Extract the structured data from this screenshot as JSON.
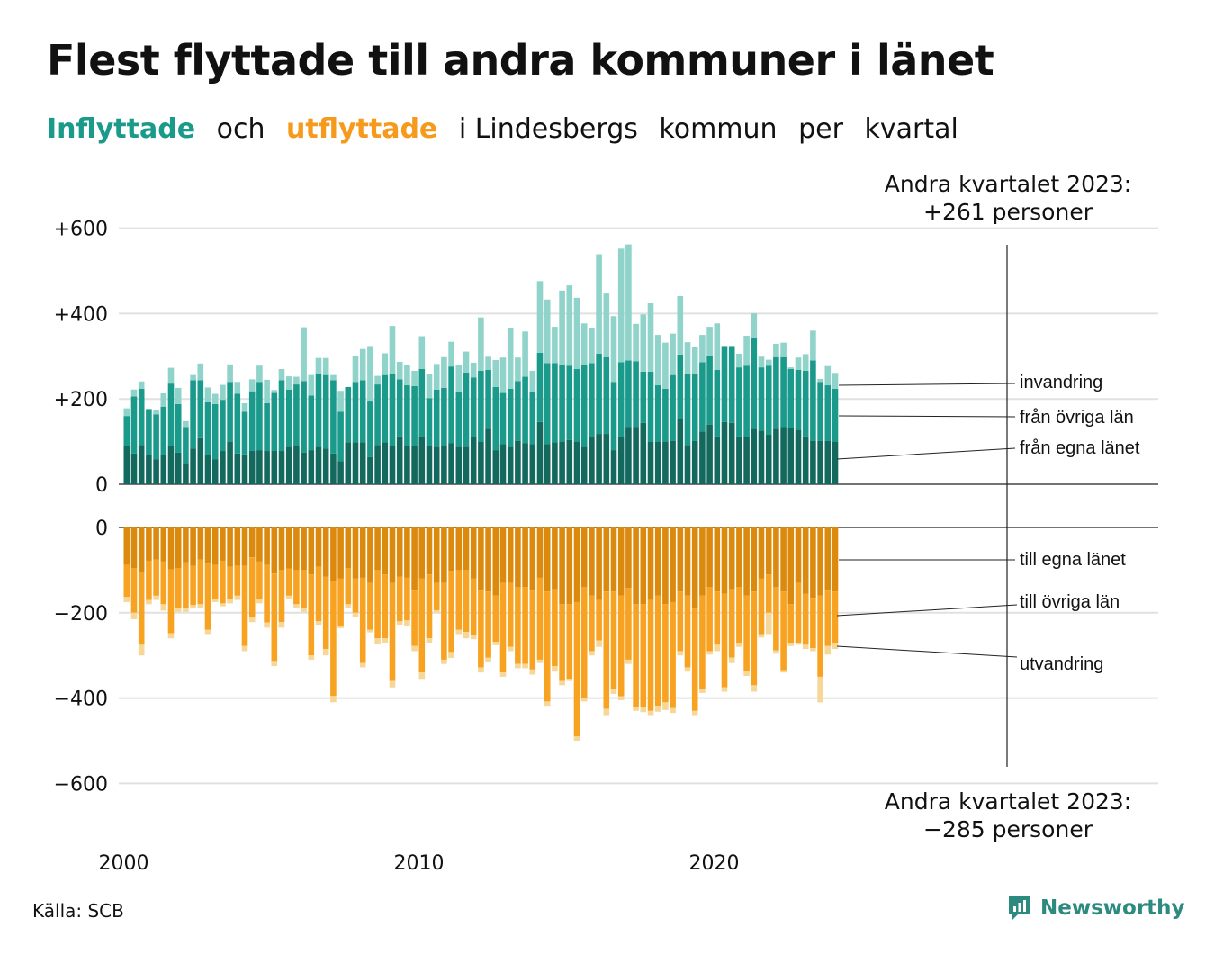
{
  "title": "Flest flyttade till andra kommuner i länet",
  "subtitle": {
    "part1": "Inflyttade",
    "part2": "och",
    "part3": "utflyttade",
    "part4": "i Lindesbergs",
    "part5": "kommun",
    "part6": "per",
    "part7": "kvartal"
  },
  "annotation_top": [
    "Andra kvartalet 2023:",
    "+261 personer"
  ],
  "annotation_bottom": [
    "Andra kvartalet 2023:",
    "−285 personer"
  ],
  "source": "Källa: SCB",
  "brand": "Newsworthy",
  "colors": {
    "in_own": "#14695e",
    "in_other": "#1a9a8a",
    "in_immig": "#8fd3ca",
    "out_own": "#dc8a0e",
    "out_other": "#f7a221",
    "out_emig": "#f6d797",
    "grid": "#e1e1e1",
    "brand": "#2d8a7e"
  },
  "chart_data": {
    "type": "bar",
    "stacked": true,
    "x_start": "2000 Q1",
    "x_end": "2023 Q2",
    "x_ticks": [
      "2000",
      "2010",
      "2020"
    ],
    "top_panel": {
      "y_ticks": [
        "+600",
        "+400",
        "+200",
        "0"
      ],
      "ylim": [
        0,
        600
      ],
      "series_labels": [
        "invandring",
        "från övriga län",
        "från egna länet"
      ],
      "totals": [
        178,
        222,
        241,
        177,
        174,
        213,
        273,
        226,
        148,
        256,
        283,
        227,
        212,
        233,
        281,
        240,
        190,
        246,
        278,
        245,
        221,
        270,
        253,
        252,
        368,
        256,
        296,
        296,
        256,
        219,
        202,
        300,
        317,
        324,
        254,
        307,
        371,
        287,
        280,
        266,
        347,
        259,
        282,
        298,
        334,
        280,
        311,
        285,
        391,
        299,
        291,
        297,
        367,
        297,
        358,
        266,
        476,
        433,
        369,
        454,
        466,
        437,
        377,
        367,
        539,
        447,
        394,
        552,
        562,
        376,
        398,
        424,
        350,
        332,
        353,
        441,
        333,
        322,
        350,
        369,
        377,
        285,
        300,
        306,
        348,
        401,
        299,
        292,
        329,
        332,
        274,
        297,
        305,
        360,
        247,
        277,
        261
      ],
      "own_county": [
        90,
        72,
        92,
        68,
        58,
        68,
        90,
        74,
        50,
        84,
        108,
        68,
        58,
        78,
        100,
        72,
        70,
        78,
        80,
        78,
        78,
        78,
        88,
        90,
        74,
        80,
        88,
        84,
        72,
        54,
        98,
        98,
        98,
        64,
        92,
        98,
        90,
        112,
        90,
        90,
        110,
        90,
        88,
        90,
        96,
        88,
        88,
        110,
        100,
        130,
        80,
        94,
        88,
        102,
        96,
        94,
        146,
        94,
        98,
        100,
        104,
        100,
        88,
        110,
        118,
        118,
        80,
        110,
        134,
        134,
        144,
        100,
        100,
        100,
        102,
        152,
        92,
        102,
        124,
        140,
        112,
        146,
        144,
        112,
        110,
        130,
        126,
        116,
        130,
        134,
        132,
        128,
        112,
        102,
        102,
        102,
        100
      ],
      "other_counties": [
        70,
        134,
        132,
        108,
        106,
        114,
        146,
        114,
        84,
        160,
        136,
        124,
        130,
        120,
        140,
        140,
        100,
        140,
        160,
        112,
        136,
        166,
        134,
        144,
        168,
        128,
        172,
        172,
        172,
        116,
        130,
        142,
        146,
        130,
        142,
        158,
        170,
        134,
        142,
        140,
        160,
        112,
        134,
        136,
        180,
        128,
        174,
        140,
        166,
        138,
        148,
        120,
        136,
        140,
        156,
        122,
        162,
        190,
        186,
        180,
        174,
        170,
        192,
        174,
        188,
        180,
        160,
        176,
        156,
        154,
        120,
        164,
        132,
        124,
        154,
        152,
        166,
        158,
        162,
        160,
        156,
        178,
        180,
        162,
        168,
        214,
        148,
        162,
        168,
        164,
        138,
        140,
        154,
        188,
        138,
        130,
        124
      ]
    },
    "bottom_panel": {
      "y_ticks": [
        "0",
        "−200",
        "−400",
        "−600"
      ],
      "ylim": [
        -600,
        0
      ],
      "series_labels": [
        "till egna länet",
        "till övriga län",
        "utvandring"
      ],
      "totals": [
        -175,
        -215,
        -300,
        -180,
        -170,
        -195,
        -260,
        -198,
        -198,
        -190,
        -190,
        -250,
        -175,
        -185,
        -178,
        -170,
        -290,
        -222,
        -178,
        -235,
        -325,
        -235,
        -168,
        -190,
        -198,
        -310,
        -228,
        -300,
        -410,
        -236,
        -190,
        -210,
        -328,
        -246,
        -273,
        -270,
        -375,
        -228,
        -230,
        -290,
        -355,
        -270,
        -200,
        -320,
        -306,
        -250,
        -260,
        -262,
        -340,
        -315,
        -276,
        -350,
        -290,
        -330,
        -330,
        -345,
        -318,
        -418,
        -338,
        -370,
        -360,
        -500,
        -408,
        -300,
        -280,
        -440,
        -390,
        -405,
        -320,
        -430,
        -433,
        -440,
        -432,
        -428,
        -435,
        -300,
        -338,
        -440,
        -388,
        -298,
        -290,
        -385,
        -318,
        -280,
        -348,
        -385,
        -258,
        -250,
        -296,
        -340,
        -278,
        -275,
        -285,
        -290,
        -410,
        -298,
        -285
      ],
      "own_county": [
        -88,
        -95,
        -105,
        -78,
        -75,
        -80,
        -98,
        -95,
        -82,
        -90,
        -75,
        -85,
        -88,
        -78,
        -92,
        -90,
        -90,
        -70,
        -80,
        -88,
        -108,
        -100,
        -96,
        -100,
        -100,
        -110,
        -92,
        -115,
        -125,
        -120,
        -95,
        -120,
        -118,
        -130,
        -100,
        -110,
        -130,
        -115,
        -118,
        -148,
        -120,
        -110,
        -130,
        -130,
        -102,
        -100,
        -100,
        -120,
        -148,
        -150,
        -160,
        -130,
        -130,
        -140,
        -140,
        -148,
        -118,
        -150,
        -145,
        -180,
        -180,
        -175,
        -140,
        -160,
        -170,
        -150,
        -150,
        -160,
        -142,
        -180,
        -180,
        -170,
        -160,
        -180,
        -175,
        -150,
        -160,
        -190,
        -160,
        -140,
        -150,
        -155,
        -145,
        -140,
        -160,
        -150,
        -120,
        -110,
        -140,
        -150,
        -180,
        -130,
        -155,
        -165,
        -160,
        -148,
        -150
      ],
      "other_counties": [
        -75,
        -105,
        -170,
        -92,
        -85,
        -100,
        -150,
        -95,
        -108,
        -92,
        -105,
        -155,
        -80,
        -100,
        -76,
        -70,
        -188,
        -140,
        -88,
        -135,
        -205,
        -122,
        -64,
        -80,
        -90,
        -190,
        -128,
        -170,
        -270,
        -110,
        -85,
        -80,
        -200,
        -110,
        -160,
        -150,
        -230,
        -105,
        -100,
        -130,
        -220,
        -150,
        -64,
        -180,
        -190,
        -140,
        -145,
        -132,
        -180,
        -155,
        -108,
        -210,
        -150,
        -180,
        -180,
        -185,
        -192,
        -258,
        -180,
        -180,
        -175,
        -315,
        -260,
        -130,
        -95,
        -275,
        -230,
        -236,
        -168,
        -240,
        -240,
        -260,
        -258,
        -230,
        -248,
        -140,
        -168,
        -240,
        -220,
        -150,
        -125,
        -220,
        -160,
        -130,
        -178,
        -220,
        -130,
        -90,
        -148,
        -185,
        -90,
        -140,
        -120,
        -118,
        -190,
        -130,
        -120
      ]
    }
  }
}
